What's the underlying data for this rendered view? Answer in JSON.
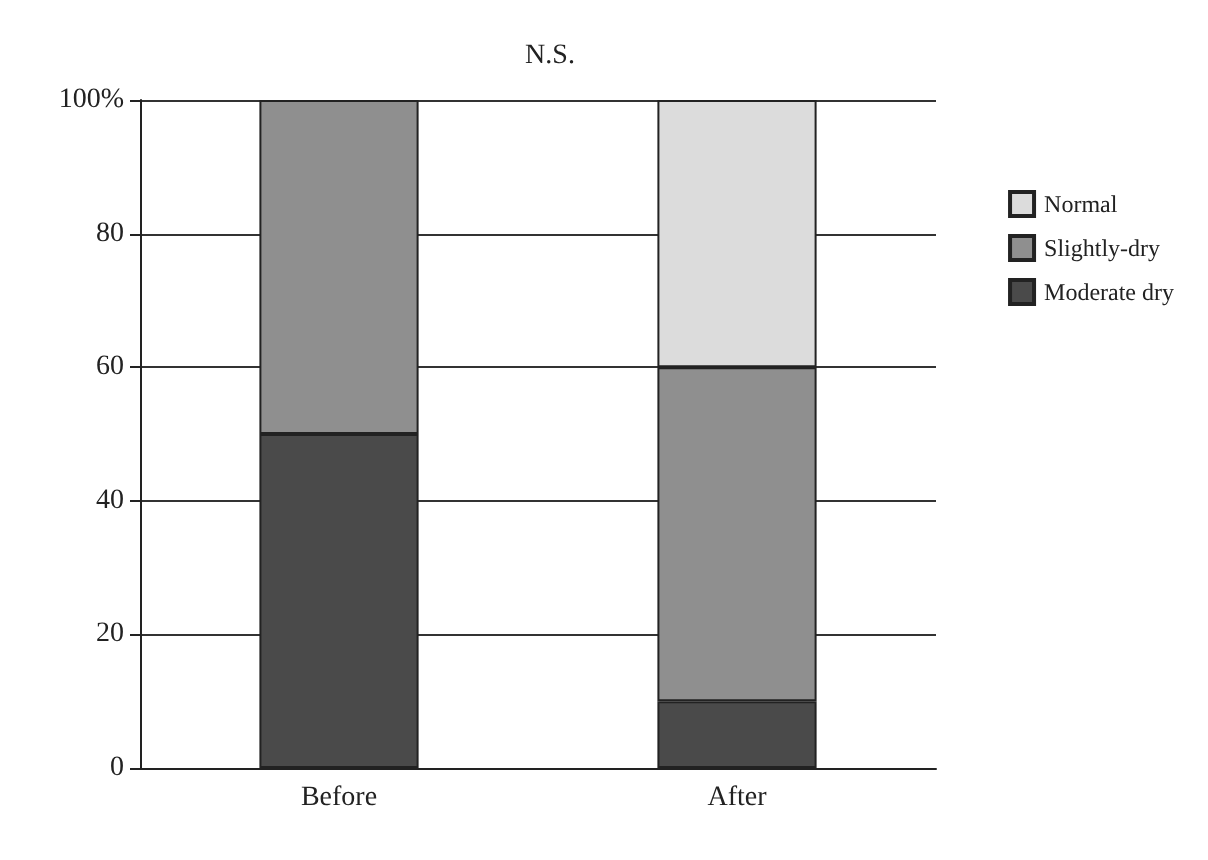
{
  "chart_data": {
    "type": "bar",
    "title": "N.S.",
    "stacked": true,
    "categories": [
      "Before",
      "After"
    ],
    "series": [
      {
        "name": "Moderate dry",
        "color": "#4a4a4a",
        "values": [
          50,
          10
        ]
      },
      {
        "name": "Slightly-dry",
        "color": "#8f8f8f",
        "values": [
          50,
          50
        ]
      },
      {
        "name": "Normal",
        "color": "#dcdcdc",
        "values": [
          0,
          40
        ]
      }
    ],
    "ylim": [
      0,
      100
    ],
    "yticks": [
      0,
      20,
      40,
      60,
      80,
      {
        "value": 100,
        "label": "100%"
      }
    ],
    "grid": "y",
    "legend": "top right"
  }
}
